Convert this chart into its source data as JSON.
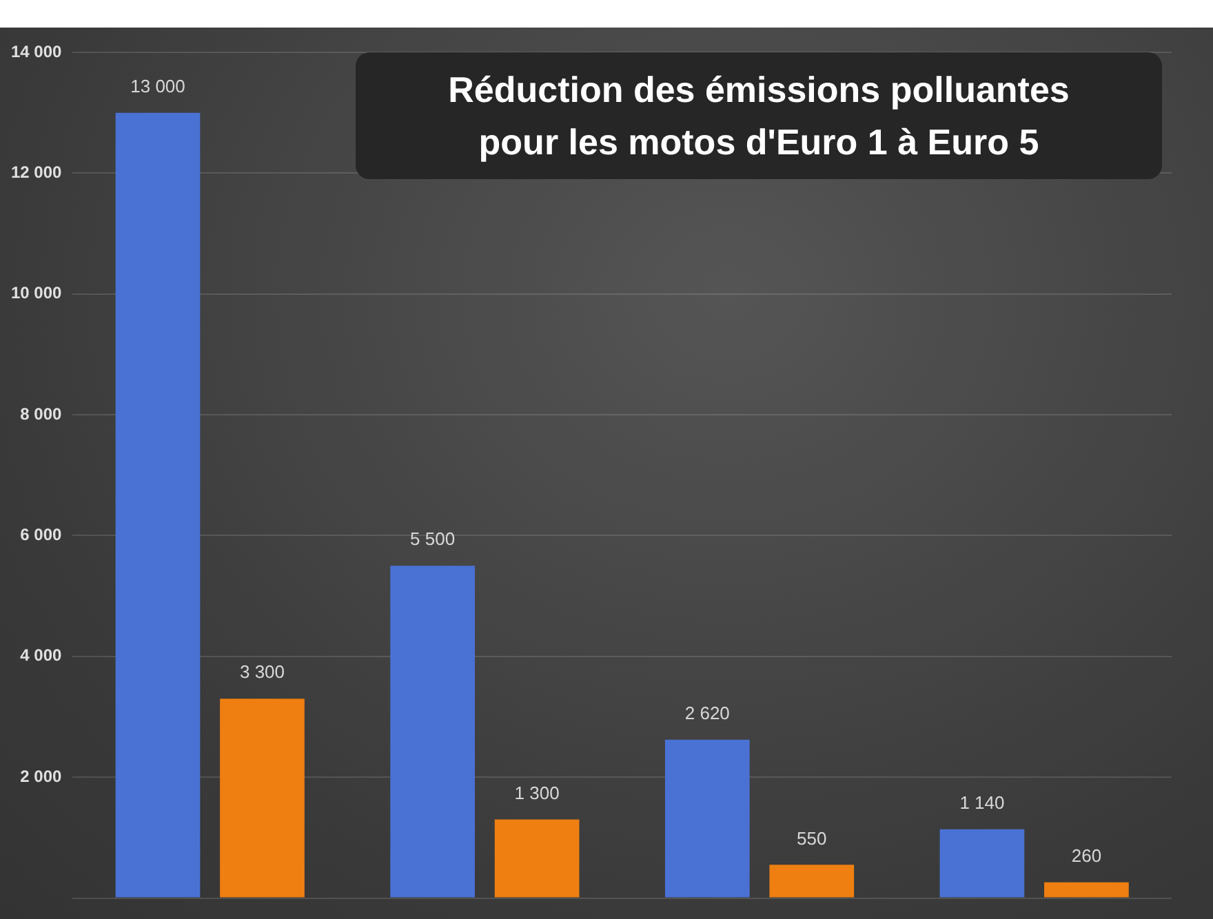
{
  "chart_data": {
    "type": "bar",
    "title": "Réduction des émissions polluantes\npour les motos d'Euro 1 à Euro 5",
    "categories": [
      null,
      null,
      null,
      null
    ],
    "series": [
      {
        "color": "#4a72d4",
        "values": [
          13000,
          5500,
          2620,
          1140
        ],
        "value_labels": [
          "13 000",
          "5 500",
          "2 620",
          "1 140"
        ]
      },
      {
        "color": "#ee7f10",
        "values": [
          3300,
          1300,
          550,
          260
        ],
        "value_labels": [
          "3 300",
          "1 300",
          "550",
          "260"
        ]
      }
    ],
    "ylim": [
      0,
      14000
    ],
    "yticks": [
      {
        "value": 0,
        "label": null
      },
      {
        "value": 2000,
        "label": "2 000"
      },
      {
        "value": 4000,
        "label": "4 000"
      },
      {
        "value": 6000,
        "label": "6 000"
      },
      {
        "value": 8000,
        "label": "8 000"
      },
      {
        "value": 10000,
        "label": "10 000"
      },
      {
        "value": 12000,
        "label": "12 000"
      },
      {
        "value": 14000,
        "label": "14 000"
      }
    ],
    "grid": "y",
    "legend": false,
    "tick_labels": "y"
  }
}
